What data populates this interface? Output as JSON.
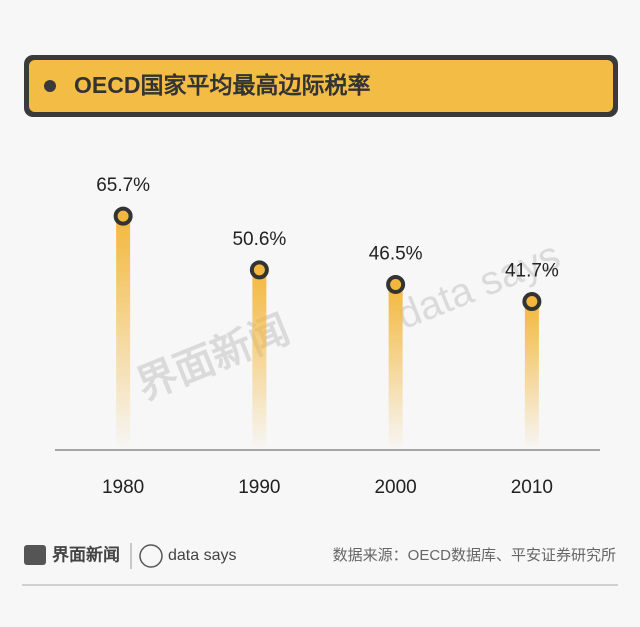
{
  "header": {
    "title": "OECD国家平均最高边际税率"
  },
  "chart_data": {
    "type": "bar",
    "categories": [
      "1980",
      "1990",
      "2000",
      "2010"
    ],
    "values": [
      65.7,
      50.6,
      46.5,
      41.7
    ],
    "value_labels": [
      "65.7%",
      "50.6%",
      "46.5%",
      "41.7%"
    ],
    "color": "#f3b73b"
  },
  "watermark": {
    "brand": "界面新闻",
    "sub": "data says"
  },
  "footer": {
    "brand": "界面新闻",
    "sub": "data says",
    "source": "数据来源：OECD数据库、平安证券研究所"
  }
}
